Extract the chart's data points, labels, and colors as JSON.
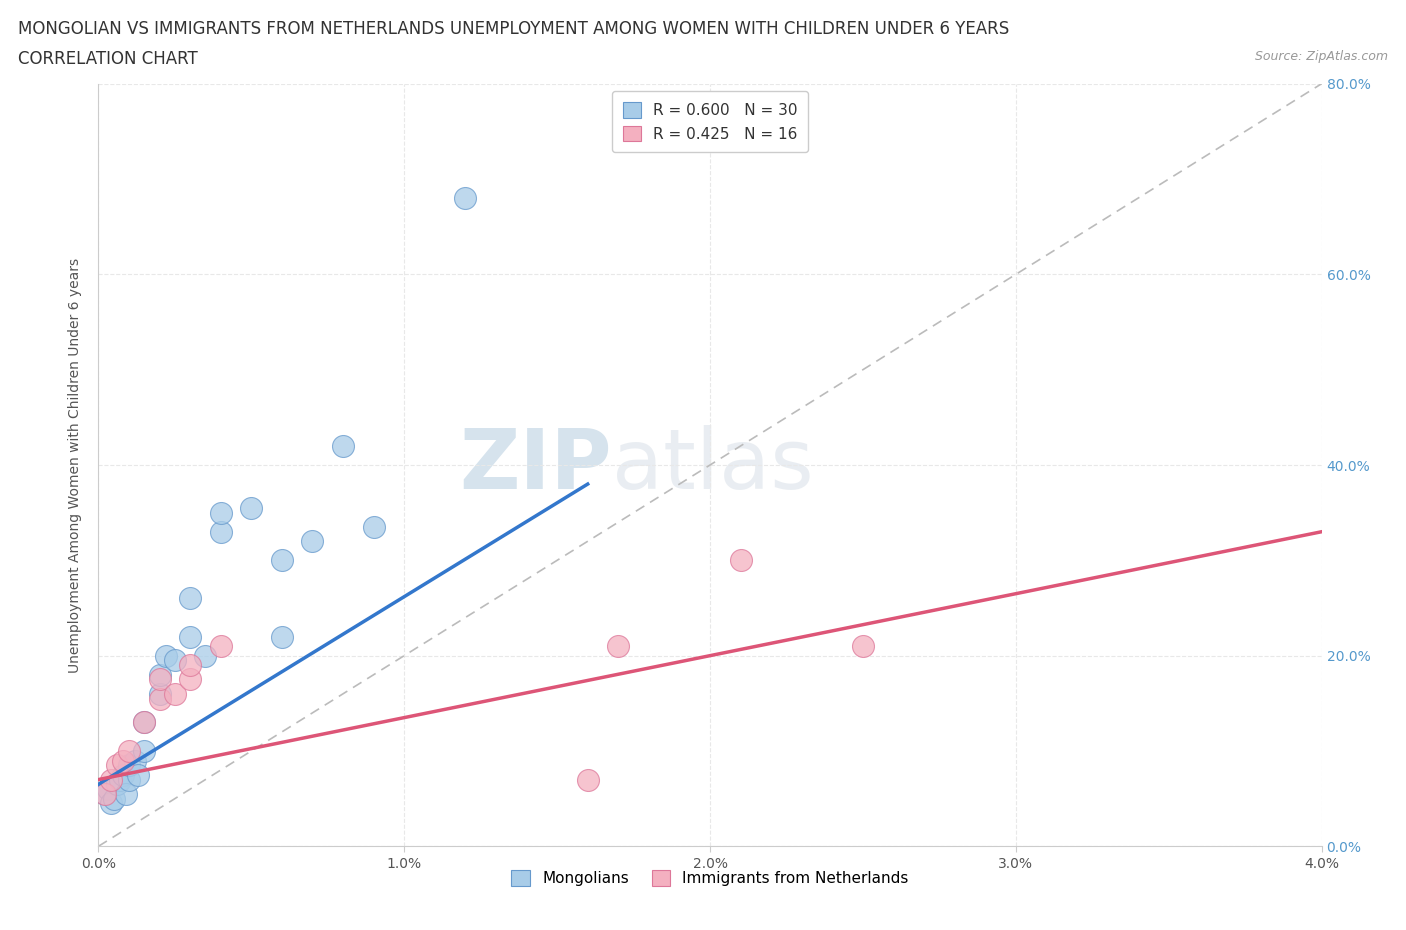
{
  "title_line1": "MONGOLIAN VS IMMIGRANTS FROM NETHERLANDS UNEMPLOYMENT AMONG WOMEN WITH CHILDREN UNDER 6 YEARS",
  "title_line2": "CORRELATION CHART",
  "source_text": "Source: ZipAtlas.com",
  "ylabel": "Unemployment Among Women with Children Under 6 years",
  "xlim": [
    0.0,
    0.04
  ],
  "ylim": [
    0.0,
    0.8
  ],
  "xticks": [
    0.0,
    0.01,
    0.02,
    0.03,
    0.04
  ],
  "yticks": [
    0.0,
    0.2,
    0.4,
    0.6,
    0.8
  ],
  "xtick_labels": [
    "0.0%",
    "1.0%",
    "2.0%",
    "3.0%",
    "4.0%"
  ],
  "ytick_labels_right": [
    "0.0%",
    "20.0%",
    "40.0%",
    "60.0%",
    "80.0%"
  ],
  "mongolian_color": "#a8cce8",
  "netherlands_color": "#f4b0c0",
  "mongolian_edge": "#6699cc",
  "netherlands_edge": "#dd7799",
  "mongolian_line_color": "#3377cc",
  "netherlands_line_color": "#dd5577",
  "legend_r1": "R = 0.600",
  "legend_n1": "N = 30",
  "legend_r2": "R = 0.425",
  "legend_n2": "N = 16",
  "legend_label1": "Mongolians",
  "legend_label2": "Immigrants from Netherlands",
  "watermark_zip": "ZIP",
  "watermark_atlas": "atlas",
  "mongolian_x": [
    0.0002,
    0.0003,
    0.0004,
    0.0005,
    0.0006,
    0.0007,
    0.0008,
    0.0009,
    0.001,
    0.001,
    0.0012,
    0.0013,
    0.0015,
    0.0015,
    0.002,
    0.002,
    0.0022,
    0.0025,
    0.003,
    0.003,
    0.0035,
    0.004,
    0.004,
    0.005,
    0.006,
    0.006,
    0.007,
    0.008,
    0.009,
    0.012
  ],
  "mongolian_y": [
    0.055,
    0.06,
    0.045,
    0.05,
    0.065,
    0.07,
    0.075,
    0.055,
    0.07,
    0.085,
    0.09,
    0.075,
    0.1,
    0.13,
    0.16,
    0.18,
    0.2,
    0.195,
    0.22,
    0.26,
    0.2,
    0.33,
    0.35,
    0.355,
    0.22,
    0.3,
    0.32,
    0.42,
    0.335,
    0.68
  ],
  "netherlands_x": [
    0.0002,
    0.0004,
    0.0006,
    0.0008,
    0.001,
    0.0015,
    0.002,
    0.002,
    0.0025,
    0.003,
    0.003,
    0.004,
    0.016,
    0.017,
    0.021,
    0.025
  ],
  "netherlands_y": [
    0.055,
    0.07,
    0.085,
    0.09,
    0.1,
    0.13,
    0.155,
    0.175,
    0.16,
    0.175,
    0.19,
    0.21,
    0.07,
    0.21,
    0.3,
    0.21
  ],
  "blue_line_x": [
    0.0,
    0.016
  ],
  "blue_line_y": [
    0.065,
    0.38
  ],
  "pink_line_x": [
    0.0,
    0.04
  ],
  "pink_line_y": [
    0.07,
    0.33
  ],
  "background_color": "#ffffff",
  "grid_color": "#e8e8e8",
  "title_fontsize": 12,
  "axis_label_fontsize": 10,
  "tick_fontsize": 10,
  "legend_fontsize": 11,
  "right_tick_color": "#5599cc"
}
